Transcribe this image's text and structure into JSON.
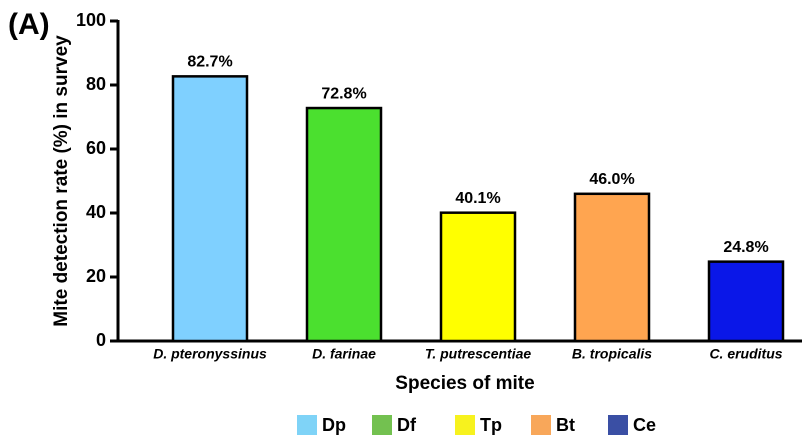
{
  "panel_label": "(A)",
  "chart_data": {
    "type": "bar",
    "x_label": "Species of mite",
    "y_label": "Mite detection rate (%) in survey",
    "categories": [
      "D. pteronyssinus",
      "D.  farinae",
      "T. putrescentiae",
      "B. tropicalis",
      "C. eruditus"
    ],
    "values": [
      82.7,
      72.8,
      40.1,
      46.0,
      24.8
    ],
    "value_labels": [
      "82.7%",
      "72.8%",
      "40.1%",
      "46.0%",
      "24.8%"
    ],
    "colors": [
      "#7fd0ff",
      "#4be02f",
      "#ffff00",
      "#ffa550",
      "#0a17e8"
    ],
    "ylim": [
      0,
      100
    ],
    "yticks": [
      0,
      20,
      40,
      60,
      80,
      100
    ],
    "legend": [
      {
        "label": "Dp",
        "color": "#7fd3f7"
      },
      {
        "label": "Df",
        "color": "#73c150"
      },
      {
        "label": "Tp",
        "color": "#f7f21e"
      },
      {
        "label": "Bt",
        "color": "#f8a75a"
      },
      {
        "label": "Ce",
        "color": "#3a4fa4"
      }
    ]
  }
}
